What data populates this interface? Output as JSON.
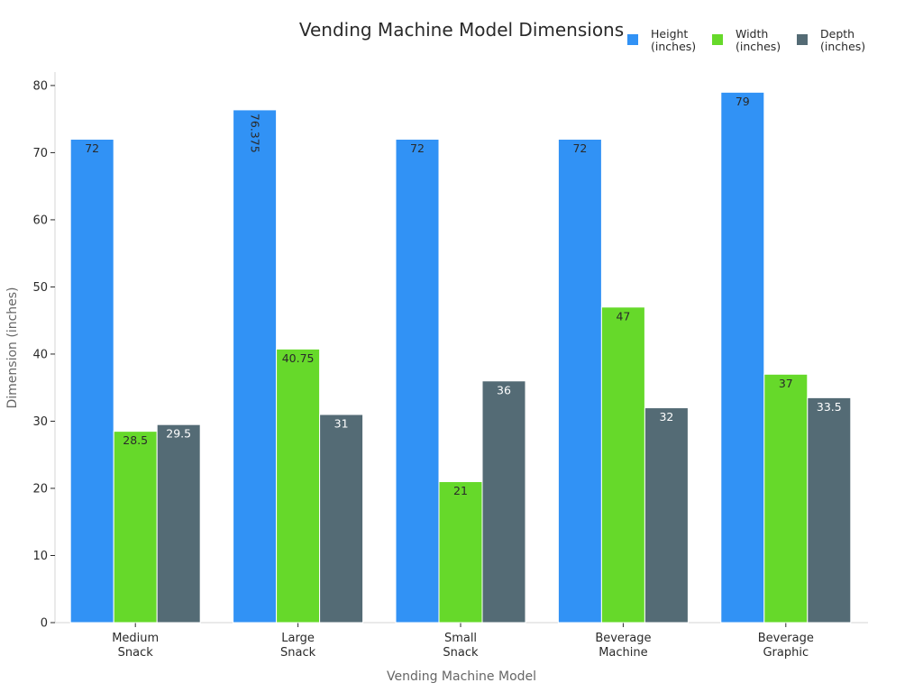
{
  "chart_data": {
    "type": "bar",
    "title": "Vending Machine Model Dimensions",
    "xlabel": "Vending Machine Model",
    "ylabel": "Dimension (inches)",
    "ylim": [
      0,
      82
    ],
    "yticks": [
      0,
      10,
      20,
      30,
      40,
      50,
      60,
      70,
      80
    ],
    "categories": [
      [
        "Medium",
        "Snack"
      ],
      [
        "Large",
        "Snack"
      ],
      [
        "Small",
        "Snack"
      ],
      [
        "Beverage",
        "Machine"
      ],
      [
        "Beverage",
        "Graphic"
      ]
    ],
    "series": [
      {
        "name": [
          "Height",
          "(inches)"
        ],
        "color": "#3192f5",
        "label_color": "#2a2a2a",
        "values": [
          72,
          76.375,
          72,
          72,
          79
        ]
      },
      {
        "name": [
          "Width",
          "(inches)"
        ],
        "color": "#66d92a",
        "label_color": "#2a2a2a",
        "values": [
          28.5,
          40.75,
          21,
          47,
          37
        ]
      },
      {
        "name": [
          "Depth",
          "(inches)"
        ],
        "color": "#546b75",
        "label_color": "#ffffff",
        "values": [
          29.5,
          31,
          36,
          32,
          33.5
        ]
      }
    ],
    "legend_position": "top-right",
    "grid": false
  }
}
